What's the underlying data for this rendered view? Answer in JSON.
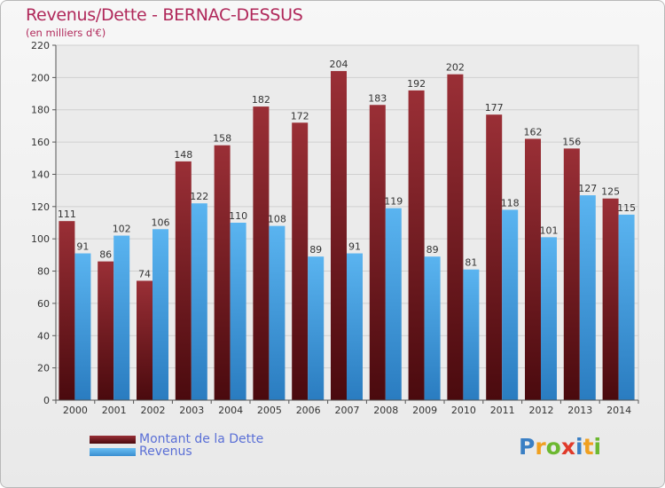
{
  "header": {
    "title": "Revenus/Dette - BERNAC-DESSUS",
    "subtitle": "(en milliers d'€)"
  },
  "legend": {
    "items": [
      {
        "label": "Montant de la Dette",
        "color": "#7a1c22"
      },
      {
        "label": "Revenus",
        "color": "#4aa6e6"
      }
    ]
  },
  "logo": {
    "letters": [
      {
        "char": "P",
        "color": "#3a7fc4"
      },
      {
        "char": "r",
        "color": "#f0a020"
      },
      {
        "char": "o",
        "color": "#6cb830"
      },
      {
        "char": "x",
        "color": "#e03a2a"
      },
      {
        "char": "i",
        "color": "#3a7fc4"
      },
      {
        "char": "t",
        "color": "#f0a020"
      },
      {
        "char": "i",
        "color": "#6cb830"
      }
    ]
  },
  "chart_data": {
    "type": "bar",
    "title": "Revenus/Dette - BERNAC-DESSUS",
    "ylabel": "(en milliers d'€)",
    "categories": [
      "2000",
      "2001",
      "2002",
      "2003",
      "2004",
      "2005",
      "2006",
      "2007",
      "2008",
      "2009",
      "2010",
      "2011",
      "2012",
      "2013",
      "2014"
    ],
    "series": [
      {
        "name": "Montant de la Dette",
        "color": "#7a1c22",
        "values": [
          111,
          86,
          74,
          148,
          158,
          182,
          172,
          204,
          183,
          192,
          202,
          177,
          162,
          156,
          125
        ]
      },
      {
        "name": "Revenus",
        "color": "#4aa6e6",
        "values": [
          91,
          102,
          106,
          122,
          110,
          108,
          89,
          91,
          119,
          89,
          81,
          118,
          101,
          127,
          115
        ]
      }
    ],
    "ylim": [
      0,
      220
    ],
    "yticks": [
      0,
      20,
      40,
      60,
      80,
      100,
      120,
      140,
      160,
      180,
      200,
      220
    ],
    "grid": true,
    "legend_position": "bottom-left"
  }
}
